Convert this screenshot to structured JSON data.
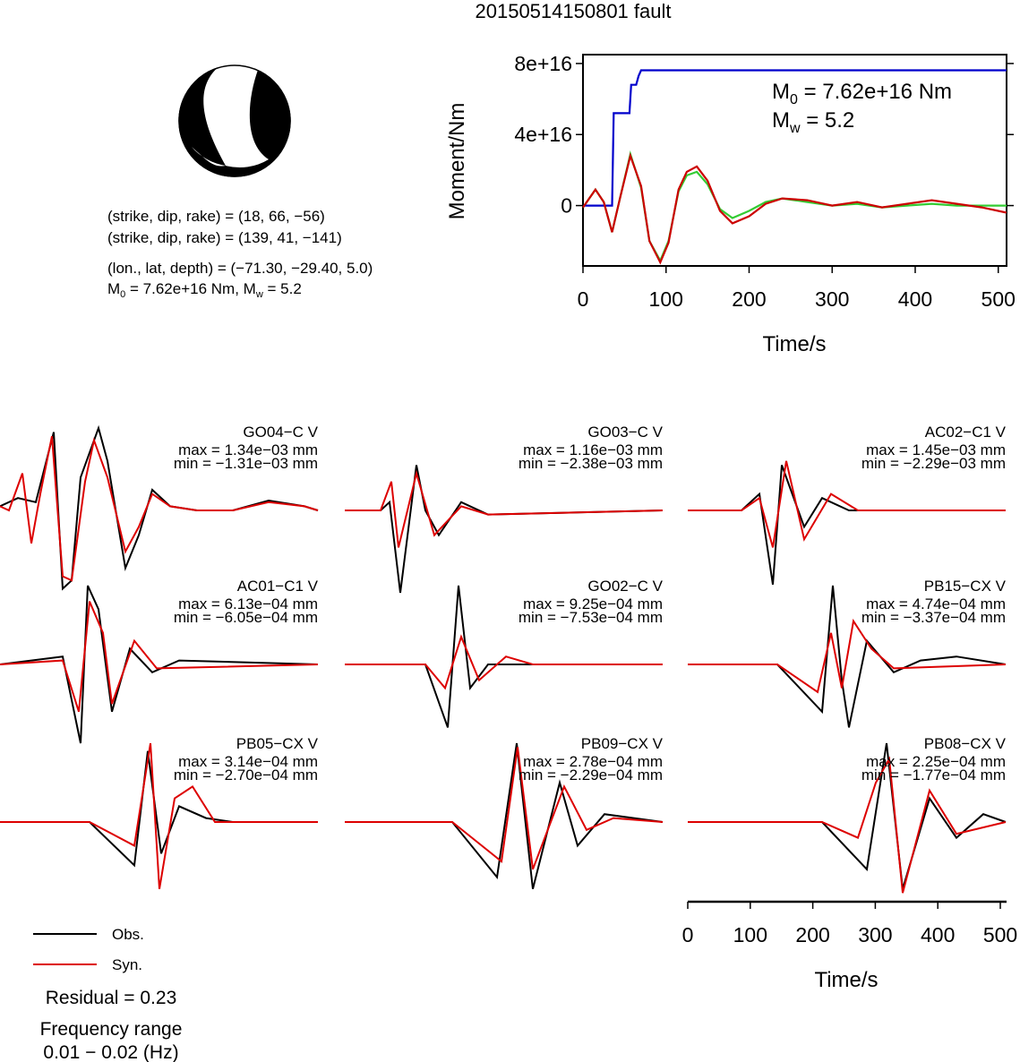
{
  "title": "20150514150801 fault",
  "beachball": {
    "lines": [
      "(strike, dip, rake) = (18, 66, −56)",
      "(strike, dip, rake) = (139, 41, −141)",
      "(lon., lat, depth) = (−71.30, −29.40, 5.0)"
    ],
    "moment_line": {
      "m0_prefix": "M",
      "m0_sub": "0",
      "m0_value": " = 7.62e+16 Nm, M",
      "mw_sub": "w",
      "mw_value": " = 5.2"
    }
  },
  "moment_panel": {
    "ylabel": "Moment/Nm",
    "xlabel": "Time/s",
    "m0_prefix": "M",
    "m0_sub": "0",
    "m0_value": " = 7.62e+16 Nm",
    "mw_prefix": "M",
    "mw_sub": "w",
    "mw_value": " = 5.2",
    "yticks": [
      "0",
      "4e+16",
      "8e+16"
    ],
    "xticks": [
      "0",
      "100",
      "200",
      "300",
      "400",
      "500"
    ]
  },
  "waveforms": {
    "xlabel": "Time/s",
    "xticks": [
      "0",
      "100",
      "200",
      "300",
      "400",
      "500"
    ],
    "stations": [
      {
        "name": "GO04−C V",
        "max": "max = 1.34e−03 mm",
        "min": "min = −1.31e−03 mm"
      },
      {
        "name": "GO03−C V",
        "max": "max = 1.16e−03 mm",
        "min": "min = −2.38e−03 mm"
      },
      {
        "name": "AC02−C1 V",
        "max": "max = 1.45e−03 mm",
        "min": "min = −2.29e−03 mm"
      },
      {
        "name": "AC01−C1 V",
        "max": "max = 6.13e−04 mm",
        "min": "min = −6.05e−04 mm"
      },
      {
        "name": "GO02−C V",
        "max": "max = 9.25e−04 mm",
        "min": "min = −7.53e−04 mm"
      },
      {
        "name": "PB15−CX V",
        "max": "max = 4.74e−04 mm",
        "min": "min = −3.37e−04 mm"
      },
      {
        "name": "PB05−CX V",
        "max": "max = 3.14e−04 mm",
        "min": "min = −2.70e−04 mm"
      },
      {
        "name": "PB09−CX V",
        "max": "max = 2.78e−04 mm",
        "min": "min = −2.29e−04 mm"
      },
      {
        "name": "PB08−CX V",
        "max": "max = 2.25e−04 mm",
        "min": "min = −1.77e−04 mm"
      }
    ]
  },
  "legend": {
    "obs_label": "Obs.",
    "syn_label": "Syn.",
    "residual": "Residual = 0.23",
    "freq_title": "Frequency range",
    "freq_range": "0.01 − 0.02 (Hz)"
  },
  "colors": {
    "observed": "#000000",
    "synthetic": "#dd0000",
    "moment": "#0000cc",
    "stf_green": "#33cc33",
    "stf_red": "#cc0000"
  },
  "chart_data": [
    {
      "type": "line",
      "title": "20150514150801 fault",
      "xlabel": "Time/s",
      "ylabel": "Moment/Nm",
      "xlim": [
        0,
        510
      ],
      "ylim": [
        -3.4e+16,
        8.5e+16
      ],
      "series": [
        {
          "values_note": "cumulative moment",
          "x": [
            0,
            35,
            37,
            40,
            56,
            58,
            64,
            67,
            70,
            510
          ],
          "y": [
            0,
            0,
            5.2e+16,
            5.2e+16,
            5.2e+16,
            6.8e+16,
            6.8e+16,
            7.3e+16,
            7.62e+16,
            7.62e+16
          ]
        },
        {
          "x": [
            0,
            15,
            25,
            35,
            45,
            57,
            70,
            80,
            93,
            103,
            115,
            125,
            137,
            150,
            165,
            180,
            200,
            220,
            240,
            270,
            300,
            330,
            360,
            390,
            420,
            450,
            480,
            510
          ],
          "y": [
            -1000000000000000.0,
            9000000000000000.0,
            2000000000000000.0,
            -1.5e+16,
            5000000000000000.0,
            2.9e+16,
            1e+16,
            -2e+16,
            -3.1e+16,
            -2e+16,
            8000000000000000.0,
            1.7e+16,
            1.9e+16,
            1.2e+16,
            -2000000000000000.0,
            -7000000000000000.0,
            -3000000000000000.0,
            2000000000000000.0,
            4000000000000000.0,
            2000000000000000.0,
            0.0,
            1000000000000000.0,
            -1000000000000000.0,
            0.0,
            1000000000000000.0,
            0.0,
            0.0,
            0.0
          ]
        },
        {
          "x": [
            0,
            15,
            25,
            35,
            45,
            57,
            70,
            80,
            93,
            103,
            115,
            125,
            137,
            150,
            165,
            180,
            200,
            220,
            240,
            270,
            300,
            330,
            360,
            390,
            420,
            450,
            480,
            510
          ],
          "y": [
            -1000000000000000.0,
            9000000000000000.0,
            2000000000000000.0,
            -1.5e+16,
            5000000000000000.0,
            2.8e+16,
            1.1e+16,
            -2e+16,
            -3.2e+16,
            -2.1e+16,
            9000000000000000.0,
            1.9e+16,
            2.2e+16,
            1.4e+16,
            -3000000000000000.0,
            -1e+16,
            -6000000000000000.0,
            1000000000000000.0,
            4000000000000000.0,
            3000000000000000.0,
            0.0,
            2000000000000000.0,
            -1000000000000000.0,
            1000000000000000.0,
            3000000000000000.0,
            1000000000000000.0,
            -1000000000000000.0,
            -4000000000000000.0
          ]
        }
      ]
    },
    {
      "type": "line",
      "xlabel": "Time/s",
      "xlim": [
        0,
        510
      ],
      "xticks": [
        0,
        100,
        200,
        300,
        400,
        500
      ],
      "description_of_values": "normalized traces (observed, synthetic) per station",
      "series": [
        {
          "station": "GO04−C V",
          "obs": [
            [
              0,
              0.05
            ],
            [
              20,
              0.15
            ],
            [
              40,
              0.1
            ],
            [
              60,
              0.95
            ],
            [
              70,
              -0.95
            ],
            [
              80,
              -0.85
            ],
            [
              90,
              0.4
            ],
            [
              110,
              1.0
            ],
            [
              120,
              0.6
            ],
            [
              140,
              -0.7
            ],
            [
              155,
              -0.3
            ],
            [
              170,
              0.25
            ],
            [
              190,
              0.05
            ],
            [
              220,
              0.0
            ],
            [
              260,
              0.0
            ],
            [
              300,
              0.12
            ],
            [
              340,
              0.05
            ],
            [
              355,
              0.0
            ]
          ],
          "syn": [
            [
              0,
              0.05
            ],
            [
              10,
              0.0
            ],
            [
              25,
              0.45
            ],
            [
              35,
              -0.4
            ],
            [
              45,
              0.2
            ],
            [
              58,
              0.9
            ],
            [
              70,
              -0.8
            ],
            [
              80,
              -0.85
            ],
            [
              95,
              0.35
            ],
            [
              105,
              0.85
            ],
            [
              120,
              0.4
            ],
            [
              140,
              -0.5
            ],
            [
              155,
              -0.2
            ],
            [
              170,
              0.2
            ],
            [
              190,
              0.05
            ],
            [
              220,
              0.0
            ],
            [
              260,
              0.0
            ],
            [
              300,
              0.1
            ],
            [
              340,
              0.05
            ],
            [
              355,
              0.0
            ]
          ]
        },
        {
          "station": "GO03−C V",
          "obs": [
            [
              0,
              0.0
            ],
            [
              40,
              0.0
            ],
            [
              50,
              0.1
            ],
            [
              62,
              -1.0
            ],
            [
              80,
              0.55
            ],
            [
              90,
              0.0
            ],
            [
              105,
              -0.3
            ],
            [
              130,
              0.1
            ],
            [
              160,
              -0.05
            ],
            [
              355,
              0.0
            ]
          ],
          "syn": [
            [
              0,
              0.0
            ],
            [
              40,
              0.0
            ],
            [
              52,
              0.35
            ],
            [
              60,
              -0.45
            ],
            [
              80,
              0.45
            ],
            [
              100,
              -0.3
            ],
            [
              130,
              0.05
            ],
            [
              160,
              -0.05
            ],
            [
              355,
              0.0
            ]
          ]
        },
        {
          "station": "AC02−C1 V",
          "obs": [
            [
              0,
              0.0
            ],
            [
              60,
              0.0
            ],
            [
              80,
              0.2
            ],
            [
              95,
              -0.9
            ],
            [
              105,
              0.55
            ],
            [
              130,
              -0.2
            ],
            [
              150,
              0.15
            ],
            [
              180,
              0.0
            ],
            [
              355,
              0.0
            ]
          ],
          "syn": [
            [
              0,
              0.0
            ],
            [
              60,
              0.0
            ],
            [
              80,
              0.15
            ],
            [
              95,
              -0.45
            ],
            [
              110,
              0.6
            ],
            [
              130,
              -0.35
            ],
            [
              160,
              0.2
            ],
            [
              190,
              0.0
            ],
            [
              355,
              0.0
            ]
          ]
        },
        {
          "station": "AC01−C1 V",
          "obs": [
            [
              0,
              0.0
            ],
            [
              70,
              0.1
            ],
            [
              90,
              -1.0
            ],
            [
              98,
              1.0
            ],
            [
              110,
              0.7
            ],
            [
              125,
              -0.6
            ],
            [
              145,
              0.2
            ],
            [
              170,
              -0.1
            ],
            [
              200,
              0.05
            ],
            [
              355,
              0.0
            ]
          ],
          "syn": [
            [
              0,
              0.0
            ],
            [
              70,
              0.05
            ],
            [
              88,
              -0.6
            ],
            [
              100,
              0.8
            ],
            [
              115,
              0.4
            ],
            [
              125,
              -0.5
            ],
            [
              150,
              0.3
            ],
            [
              175,
              -0.05
            ],
            [
              355,
              0.0
            ]
          ]
        },
        {
          "station": "GO02−C V",
          "obs": [
            [
              0,
              0.0
            ],
            [
              90,
              0.0
            ],
            [
              115,
              -0.8
            ],
            [
              127,
              1.0
            ],
            [
              140,
              -0.3
            ],
            [
              160,
              0.0
            ],
            [
              355,
              0.0
            ]
          ],
          "syn": [
            [
              0,
              0.0
            ],
            [
              90,
              0.0
            ],
            [
              112,
              -0.3
            ],
            [
              130,
              0.35
            ],
            [
              150,
              -0.2
            ],
            [
              180,
              0.1
            ],
            [
              210,
              0.0
            ],
            [
              355,
              0.0
            ]
          ]
        },
        {
          "station": "PB15−CX V",
          "obs": [
            [
              0,
              0.0
            ],
            [
              100,
              0.0
            ],
            [
              150,
              -0.6
            ],
            [
              162,
              1.0
            ],
            [
              172,
              -0.2
            ],
            [
              180,
              -0.8
            ],
            [
              200,
              0.3
            ],
            [
              230,
              -0.1
            ],
            [
              260,
              0.05
            ],
            [
              300,
              0.1
            ],
            [
              355,
              0.0
            ]
          ],
          "syn": [
            [
              0,
              0.0
            ],
            [
              100,
              0.0
            ],
            [
              145,
              -0.35
            ],
            [
              160,
              0.4
            ],
            [
              172,
              -0.3
            ],
            [
              185,
              0.55
            ],
            [
              205,
              0.2
            ],
            [
              230,
              -0.05
            ],
            [
              355,
              0.0
            ]
          ]
        },
        {
          "station": "PB05−CX V",
          "obs": [
            [
              0,
              0.0
            ],
            [
              100,
              0.0
            ],
            [
              150,
              -0.55
            ],
            [
              165,
              0.9
            ],
            [
              180,
              -0.4
            ],
            [
              200,
              0.2
            ],
            [
              230,
              0.05
            ],
            [
              260,
              0.0
            ],
            [
              355,
              0.0
            ]
          ],
          "syn": [
            [
              0,
              0.0
            ],
            [
              100,
              0.0
            ],
            [
              150,
              -0.3
            ],
            [
              168,
              1.0
            ],
            [
              178,
              -0.85
            ],
            [
              195,
              0.3
            ],
            [
              215,
              0.45
            ],
            [
              240,
              0.0
            ],
            [
              355,
              0.0
            ]
          ]
        },
        {
          "station": "PB09−CX V",
          "obs": [
            [
              0,
              0.0
            ],
            [
              120,
              0.0
            ],
            [
              170,
              -0.7
            ],
            [
              192,
              1.0
            ],
            [
              210,
              -0.85
            ],
            [
              240,
              0.5
            ],
            [
              260,
              -0.3
            ],
            [
              290,
              0.1
            ],
            [
              355,
              0.0
            ]
          ],
          "syn": [
            [
              0,
              0.0
            ],
            [
              120,
              0.0
            ],
            [
              175,
              -0.5
            ],
            [
              193,
              0.95
            ],
            [
              210,
              -0.6
            ],
            [
              245,
              0.45
            ],
            [
              270,
              -0.1
            ],
            [
              300,
              0.05
            ],
            [
              355,
              0.0
            ]
          ]
        },
        {
          "station": "PB08−CX V",
          "obs": [
            [
              0,
              0.0
            ],
            [
              150,
              0.0
            ],
            [
              200,
              -0.6
            ],
            [
              222,
              1.0
            ],
            [
              240,
              -0.85
            ],
            [
              270,
              0.3
            ],
            [
              300,
              -0.2
            ],
            [
              330,
              0.1
            ],
            [
              355,
              0.0
            ]
          ],
          "syn": [
            [
              0,
              0.0
            ],
            [
              150,
              0.0
            ],
            [
              190,
              -0.2
            ],
            [
              210,
              0.5
            ],
            [
              225,
              0.8
            ],
            [
              240,
              -0.9
            ],
            [
              270,
              0.4
            ],
            [
              300,
              -0.15
            ],
            [
              355,
              0.0
            ]
          ]
        }
      ]
    }
  ]
}
